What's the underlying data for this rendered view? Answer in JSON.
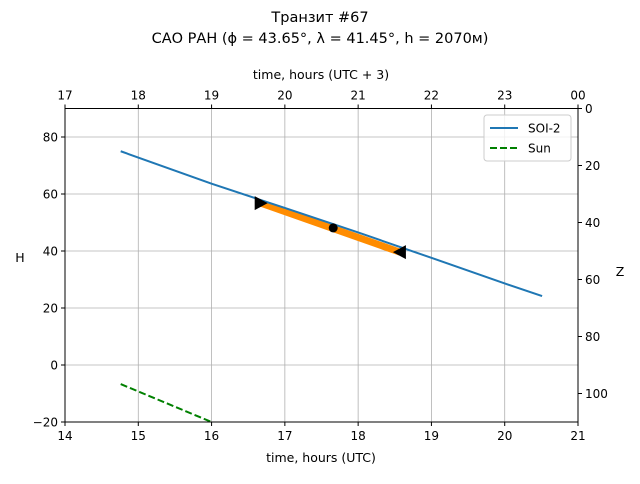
{
  "chart_data": {
    "type": "line",
    "title": "Транзит #67",
    "subtitle": "САО РАН (ϕ = 43.65°, λ = 41.45°, h = 2070м)",
    "xlabel": "time, hours (UTC)",
    "ylabel": "H",
    "top_xlabel": "time, hours (UTC + 3)",
    "right_ylabel": "Z",
    "xlim": [
      14,
      21
    ],
    "ylim": [
      -20,
      90
    ],
    "xticks": [
      "14",
      "15",
      "16",
      "17",
      "18",
      "19",
      "20",
      "21"
    ],
    "yticks": [
      "−20",
      "0",
      "20",
      "40",
      "60",
      "80"
    ],
    "top_xticks": [
      "17",
      "18",
      "19",
      "20",
      "21",
      "22",
      "23",
      "00"
    ],
    "right_yticks": [
      "0",
      "20",
      "40",
      "60",
      "80",
      "100"
    ],
    "grid": true,
    "legend_position": "top-right",
    "series": [
      {
        "name": "SOI-2",
        "color": "#1f77b4",
        "style": "solid",
        "x": [
          14.76,
          16.0,
          17.0,
          18.0,
          19.0,
          20.0,
          20.51
        ],
        "y": [
          75.0,
          63.6,
          55.1,
          46.5,
          37.6,
          28.6,
          24.2
        ]
      },
      {
        "name": "Sun",
        "color": "#008000",
        "style": "dashed",
        "x": [
          14.76,
          16.0
        ],
        "y": [
          -6.7,
          -20.0
        ]
      }
    ],
    "transit_segment": {
      "color": "#ff8c00",
      "x": [
        16.67,
        18.57
      ],
      "y": [
        56.8,
        39.6
      ]
    },
    "markers": [
      {
        "kind": "start-triangle",
        "x": 16.67,
        "y": 56.8
      },
      {
        "kind": "midpoint",
        "x": 17.66,
        "y": 48.1
      },
      {
        "kind": "end-triangle",
        "x": 18.57,
        "y": 39.6
      }
    ]
  }
}
